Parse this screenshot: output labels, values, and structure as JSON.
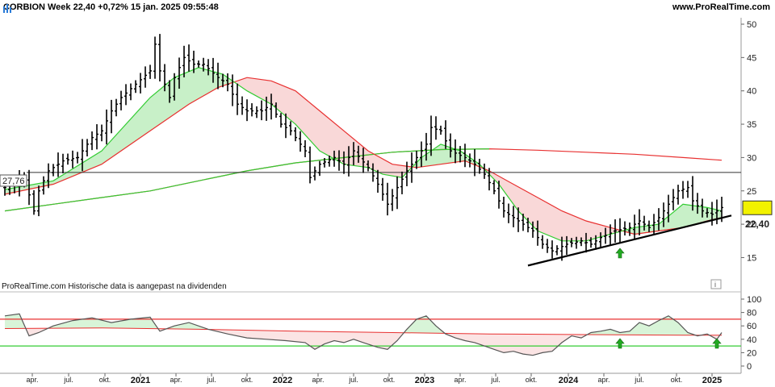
{
  "header": {
    "title": "CORBION Week 22,40 +0,72% 15 jan. 2025 09:55:48",
    "url": "www.ProRealTime.com"
  },
  "note": "ProRealTime.com  Historische data is aangepast na dividenden",
  "info_icon": "i",
  "colors": {
    "price_bars": "#000000",
    "ma_green": "#33cc33",
    "ma_red": "#e83030",
    "fill_green": "#c8f0c8",
    "fill_red": "#f9d8d8",
    "trendline": "#000000",
    "arrow": "#22aa22",
    "rsi_line": "#555555"
  },
  "chart_data": [
    {
      "type": "bar",
      "subtype": "ohlc",
      "title": "CORBION Week",
      "y_ticks": [
        "50",
        "45",
        "40",
        "35",
        "30",
        "25",
        "20",
        "15"
      ],
      "ylim": [
        13,
        52
      ],
      "horizontal_level": {
        "label": "27,76",
        "value": 27.76
      },
      "last_price": {
        "label": "22,40",
        "value": 22.4
      },
      "x_ticks": [
        "apr.",
        "jul.",
        "okt.",
        "2021",
        "apr.",
        "jul.",
        "okt.",
        "2022",
        "apr.",
        "jul.",
        "okt.",
        "2023",
        "apr.",
        "jul.",
        "okt.",
        "2024",
        "apr.",
        "jul.",
        "okt.",
        "2025"
      ],
      "x_ticks_bold": [
        "2021",
        "2022",
        "2023",
        "2024",
        "2025"
      ],
      "price_path": [
        [
          0,
          25.5
        ],
        [
          4,
          26.8
        ],
        [
          6,
          22
        ],
        [
          7,
          25
        ],
        [
          9,
          28
        ],
        [
          12,
          29.5
        ],
        [
          15,
          30
        ],
        [
          18,
          33
        ],
        [
          20,
          34
        ],
        [
          22,
          37
        ],
        [
          24,
          39
        ],
        [
          27,
          41
        ],
        [
          30,
          43
        ],
        [
          31,
          47
        ],
        [
          32,
          43
        ],
        [
          34,
          39
        ],
        [
          35,
          42
        ],
        [
          37,
          45
        ],
        [
          39,
          44
        ],
        [
          41,
          44
        ],
        [
          44,
          42
        ],
        [
          46,
          41
        ],
        [
          48,
          38
        ],
        [
          50,
          37
        ],
        [
          53,
          37
        ],
        [
          55,
          38
        ],
        [
          57,
          35
        ],
        [
          59,
          34
        ],
        [
          62,
          31
        ],
        [
          63,
          27
        ],
        [
          65,
          29
        ],
        [
          68,
          30
        ],
        [
          70,
          29
        ],
        [
          72,
          31
        ],
        [
          75,
          28.5
        ],
        [
          77,
          26
        ],
        [
          79,
          23
        ],
        [
          81,
          25.5
        ],
        [
          83,
          28
        ],
        [
          85,
          30
        ],
        [
          87,
          32
        ],
        [
          88,
          34.5
        ],
        [
          90,
          34
        ],
        [
          92,
          31
        ],
        [
          95,
          30
        ],
        [
          97,
          29
        ],
        [
          99,
          27.5
        ],
        [
          101,
          25
        ],
        [
          103,
          22
        ],
        [
          105,
          21
        ],
        [
          107,
          20
        ],
        [
          109,
          19
        ],
        [
          111,
          17
        ],
        [
          113,
          16
        ],
        [
          116,
          17
        ],
        [
          119,
          17.5
        ],
        [
          121,
          17
        ],
        [
          123,
          18
        ],
        [
          126,
          19
        ],
        [
          129,
          19.5
        ],
        [
          131,
          20.5
        ],
        [
          133,
          19.5
        ],
        [
          135,
          21
        ],
        [
          137,
          23
        ],
        [
          139,
          25
        ],
        [
          141,
          25.5
        ],
        [
          142,
          23.5
        ],
        [
          144,
          22
        ],
        [
          146,
          21.5
        ],
        [
          148,
          22.5
        ]
      ],
      "ma_fast": [
        [
          0,
          25.2
        ],
        [
          10,
          26.5
        ],
        [
          20,
          31
        ],
        [
          30,
          39
        ],
        [
          35,
          42
        ],
        [
          40,
          43.5
        ],
        [
          45,
          42.5
        ],
        [
          50,
          40
        ],
        [
          55,
          38
        ],
        [
          60,
          35
        ],
        [
          65,
          31
        ],
        [
          70,
          29
        ],
        [
          75,
          28.5
        ],
        [
          78,
          27.5
        ],
        [
          82,
          27
        ],
        [
          86,
          30
        ],
        [
          90,
          32
        ],
        [
          94,
          31
        ],
        [
          98,
          29
        ],
        [
          102,
          26
        ],
        [
          106,
          22
        ],
        [
          110,
          19
        ],
        [
          115,
          17.5
        ],
        [
          120,
          17.5
        ],
        [
          125,
          18.5
        ],
        [
          130,
          19.5
        ],
        [
          135,
          20
        ],
        [
          140,
          23
        ],
        [
          145,
          22.5
        ],
        [
          148,
          22
        ]
      ],
      "ma_mid": [
        [
          0,
          24.5
        ],
        [
          10,
          26
        ],
        [
          20,
          29
        ],
        [
          30,
          34
        ],
        [
          38,
          38
        ],
        [
          44,
          40.5
        ],
        [
          50,
          42
        ],
        [
          55,
          41.5
        ],
        [
          60,
          40
        ],
        [
          65,
          37
        ],
        [
          70,
          34
        ],
        [
          75,
          31
        ],
        [
          80,
          29
        ],
        [
          85,
          28.5
        ],
        [
          90,
          29
        ],
        [
          95,
          29.5
        ],
        [
          100,
          28
        ],
        [
          105,
          26
        ],
        [
          110,
          24
        ],
        [
          115,
          22
        ],
        [
          120,
          20.5
        ],
        [
          125,
          19.5
        ],
        [
          130,
          18.5
        ],
        [
          135,
          19
        ],
        [
          140,
          19.5
        ],
        [
          145,
          20.5
        ],
        [
          148,
          21
        ]
      ],
      "ma_slow": [
        [
          0,
          22
        ],
        [
          10,
          23
        ],
        [
          20,
          24
        ],
        [
          30,
          25
        ],
        [
          40,
          26.5
        ],
        [
          50,
          28
        ],
        [
          60,
          29.2
        ],
        [
          70,
          30
        ],
        [
          80,
          30.8
        ],
        [
          90,
          31.2
        ],
        [
          100,
          31.3
        ],
        [
          110,
          31.1
        ],
        [
          120,
          30.8
        ],
        [
          130,
          30.5
        ],
        [
          140,
          30
        ],
        [
          148,
          29.6
        ]
      ],
      "trendline": [
        [
          108,
          13.8
        ],
        [
          150,
          21.3
        ]
      ],
      "signal_arrows_x": [
        127
      ]
    },
    {
      "type": "line",
      "title": "RSI",
      "y_ticks": [
        "100",
        "80",
        "60",
        "40",
        "20",
        "0"
      ],
      "ylim": [
        -5,
        105
      ],
      "levels": [
        {
          "name": "upper",
          "value": 70
        },
        {
          "name": "lower",
          "value": 30
        }
      ],
      "series": [
        {
          "values": [
            [
              0,
              75
            ],
            [
              3,
              78
            ],
            [
              5,
              45
            ],
            [
              7,
              50
            ],
            [
              10,
              60
            ],
            [
              14,
              68
            ],
            [
              18,
              72
            ],
            [
              22,
              65
            ],
            [
              26,
              70
            ],
            [
              30,
              73
            ],
            [
              32,
              52
            ],
            [
              35,
              60
            ],
            [
              38,
              65
            ],
            [
              42,
              55
            ],
            [
              46,
              48
            ],
            [
              50,
              42
            ],
            [
              54,
              40
            ],
            [
              58,
              38
            ],
            [
              62,
              35
            ],
            [
              64,
              25
            ],
            [
              66,
              33
            ],
            [
              68,
              38
            ],
            [
              70,
              35
            ],
            [
              72,
              40
            ],
            [
              74,
              35
            ],
            [
              77,
              28
            ],
            [
              79,
              25
            ],
            [
              81,
              38
            ],
            [
              83,
              55
            ],
            [
              85,
              70
            ],
            [
              87,
              75
            ],
            [
              89,
              60
            ],
            [
              91,
              48
            ],
            [
              93,
              42
            ],
            [
              95,
              38
            ],
            [
              97,
              35
            ],
            [
              99,
              30
            ],
            [
              101,
              25
            ],
            [
              103,
              20
            ],
            [
              105,
              22
            ],
            [
              107,
              18
            ],
            [
              109,
              16
            ],
            [
              111,
              20
            ],
            [
              113,
              22
            ],
            [
              115,
              35
            ],
            [
              117,
              45
            ],
            [
              119,
              42
            ],
            [
              121,
              50
            ],
            [
              123,
              52
            ],
            [
              125,
              55
            ],
            [
              127,
              50
            ],
            [
              129,
              52
            ],
            [
              131,
              65
            ],
            [
              133,
              60
            ],
            [
              135,
              68
            ],
            [
              137,
              75
            ],
            [
              139,
              65
            ],
            [
              141,
              50
            ],
            [
              143,
              45
            ],
            [
              145,
              48
            ],
            [
              147,
              40
            ],
            [
              148,
              50
            ]
          ]
        },
        {
          "values": [
            [
              0,
              56
            ],
            [
              20,
              57
            ],
            [
              40,
              55
            ],
            [
              60,
              52
            ],
            [
              80,
              50
            ],
            [
              100,
              48
            ],
            [
              120,
              47
            ],
            [
              140,
              46
            ],
            [
              148,
              46
            ]
          ]
        }
      ],
      "signal_arrows_x": [
        127,
        147
      ]
    }
  ]
}
